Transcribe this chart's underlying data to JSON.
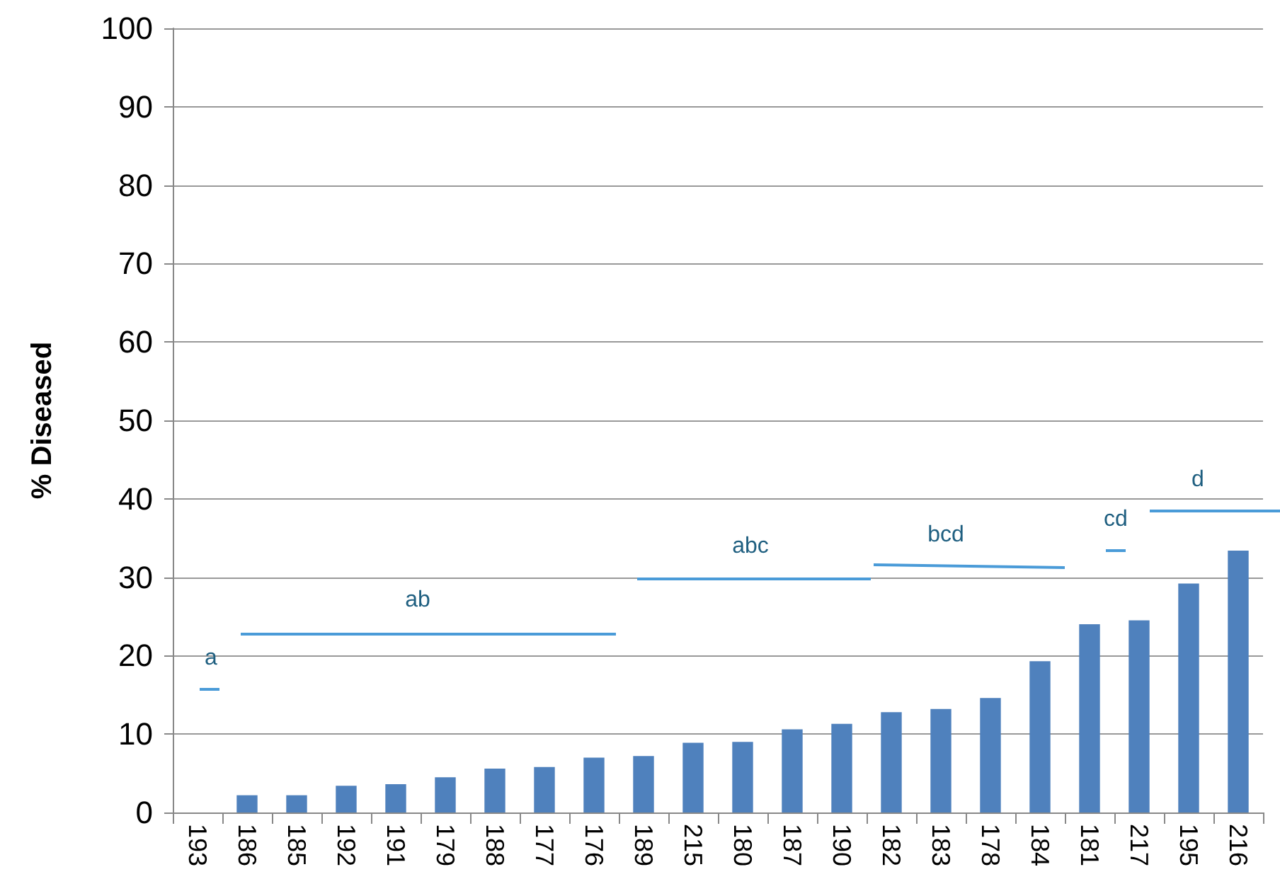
{
  "chart_data": {
    "type": "bar",
    "ylabel": "% Diseased",
    "categories": [
      "193",
      "186",
      "185",
      "192",
      "191",
      "179",
      "188",
      "177",
      "176",
      "189",
      "215",
      "180",
      "187",
      "190",
      "182",
      "183",
      "178",
      "184",
      "181",
      "217",
      "195",
      "216"
    ],
    "values": [
      0,
      2.2,
      2.2,
      3.4,
      3.6,
      4.5,
      5.6,
      5.8,
      7.0,
      7.2,
      8.9,
      9.0,
      10.6,
      11.3,
      12.8,
      13.2,
      14.6,
      19.3,
      24.0,
      24.5,
      29.2,
      33.4
    ],
    "color": "#4f81bd",
    "ylim": [
      0,
      100
    ],
    "yticks": [
      0,
      10,
      20,
      30,
      40,
      50,
      60,
      70,
      80,
      90,
      100
    ],
    "grid": "y",
    "annotations": [
      "a",
      "ab",
      "abc",
      "bcd",
      "cd",
      "d"
    ]
  }
}
